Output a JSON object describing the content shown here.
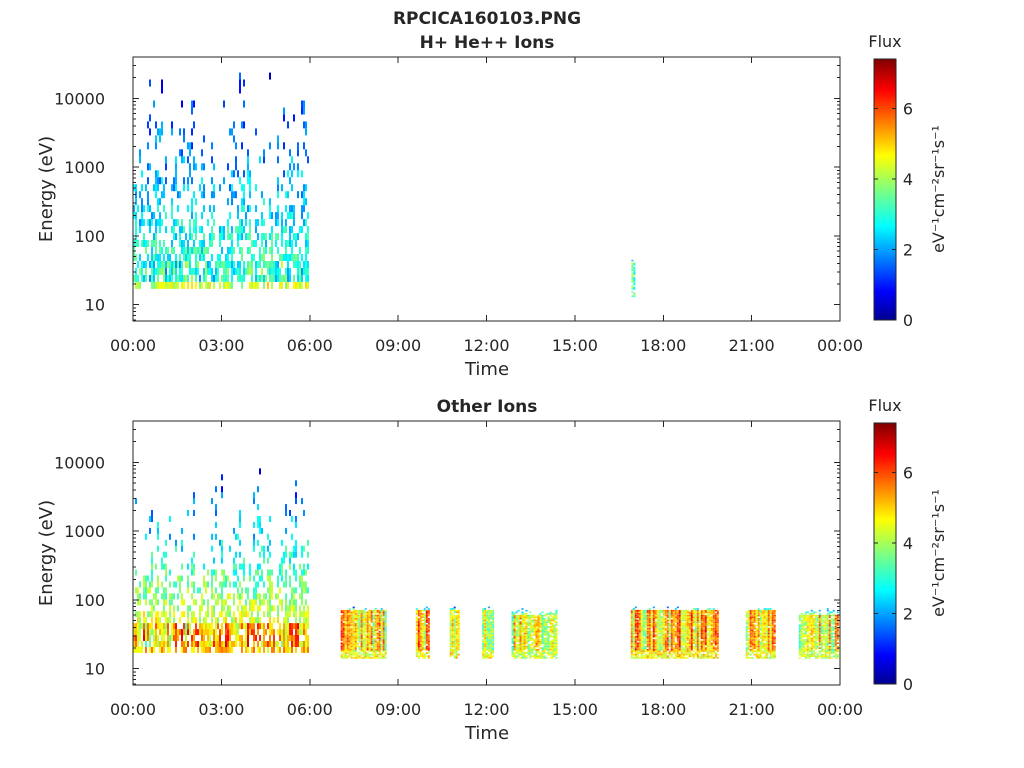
{
  "figure": {
    "title_line1": "RPCICA160103.PNG"
  },
  "chart_data": [
    {
      "type": "heatmap",
      "title": "H+ He++ Ions",
      "xlabel": "Time",
      "ylabel": "Energy (eV)",
      "y_scale": "log",
      "ylim": [
        5.8,
        40000
      ],
      "x_ticks": [
        "00:00",
        "03:00",
        "06:00",
        "09:00",
        "12:00",
        "15:00",
        "18:00",
        "21:00",
        "00:00"
      ],
      "x_range_hours": [
        0,
        24
      ],
      "y_ticks": [
        {
          "value": 10,
          "label": "10"
        },
        {
          "value": 100,
          "label": "100"
        },
        {
          "value": 1000,
          "label": "1000"
        },
        {
          "value": 10000,
          "label": "10000"
        }
      ],
      "colorbar": {
        "title": "Flux",
        "label": "eV⁻¹cm⁻²sr⁻¹s⁻¹",
        "range": [
          0,
          7.4
        ],
        "ticks": [
          {
            "value": 0,
            "label": "0"
          },
          {
            "value": 2,
            "label": "2"
          },
          {
            "value": 4,
            "label": "4"
          },
          {
            "value": 6,
            "label": "6"
          }
        ]
      },
      "blocks": [
        {
          "t_start": 0.0,
          "t_end": 5.95,
          "e_low": 17,
          "e_high": 30000,
          "core_low": 20,
          "core_high": 45,
          "core_level": 3.8,
          "density": 0.75,
          "lowband_level": 4.3
        },
        {
          "t_start": 16.92,
          "t_end": 17.0,
          "e_low": 13,
          "e_high": 60,
          "core_low": 15,
          "core_high": 40,
          "core_level": 4.5,
          "density": 0.9
        }
      ]
    },
    {
      "type": "heatmap",
      "title": "Other Ions",
      "xlabel": "Time",
      "ylabel": "Energy (eV)",
      "y_scale": "log",
      "ylim": [
        5.8,
        40000
      ],
      "x_ticks": [
        "00:00",
        "03:00",
        "06:00",
        "09:00",
        "12:00",
        "15:00",
        "18:00",
        "21:00",
        "00:00"
      ],
      "x_range_hours": [
        0,
        24
      ],
      "y_ticks": [
        {
          "value": 10,
          "label": "10"
        },
        {
          "value": 100,
          "label": "100"
        },
        {
          "value": 1000,
          "label": "1000"
        },
        {
          "value": 10000,
          "label": "10000"
        }
      ],
      "colorbar": {
        "title": "Flux",
        "label": "eV⁻¹cm⁻²sr⁻¹s⁻¹",
        "range": [
          0,
          7.4
        ],
        "ticks": [
          {
            "value": 0,
            "label": "0"
          },
          {
            "value": 2,
            "label": "2"
          },
          {
            "value": 4,
            "label": "4"
          },
          {
            "value": 6,
            "label": "6"
          }
        ]
      },
      "blocks": [
        {
          "t_start": 0.0,
          "t_end": 5.95,
          "e_low": 17,
          "e_high": 10000,
          "core_low": 20,
          "core_high": 45,
          "core_level": 6.3,
          "density": 0.8,
          "lowband_level": 5.0
        },
        {
          "t_start": 7.05,
          "t_end": 8.55,
          "e_low": 14,
          "e_high": 80,
          "core_low": 18,
          "core_high": 70,
          "core_level": 6.0,
          "density": 0.95
        },
        {
          "t_start": 9.6,
          "t_end": 10.05,
          "e_low": 14,
          "e_high": 80,
          "core_low": 18,
          "core_high": 70,
          "core_level": 6.2,
          "density": 0.95
        },
        {
          "t_start": 10.75,
          "t_end": 11.05,
          "e_low": 14,
          "e_high": 80,
          "core_low": 18,
          "core_high": 70,
          "core_level": 6.2,
          "density": 0.95
        },
        {
          "t_start": 11.85,
          "t_end": 12.2,
          "e_low": 14,
          "e_high": 80,
          "core_low": 18,
          "core_high": 70,
          "core_level": 6.0,
          "density": 0.95
        },
        {
          "t_start": 12.85,
          "t_end": 14.35,
          "e_low": 14,
          "e_high": 80,
          "core_low": 18,
          "core_high": 60,
          "core_level": 5.5,
          "density": 0.9
        },
        {
          "t_start": 16.9,
          "t_end": 19.85,
          "e_low": 14,
          "e_high": 80,
          "core_low": 18,
          "core_high": 70,
          "core_level": 6.2,
          "density": 0.95
        },
        {
          "t_start": 20.8,
          "t_end": 21.8,
          "e_low": 14,
          "e_high": 80,
          "core_low": 18,
          "core_high": 70,
          "core_level": 6.0,
          "density": 0.95
        },
        {
          "t_start": 22.6,
          "t_end": 23.95,
          "e_low": 14,
          "e_high": 80,
          "core_low": 18,
          "core_high": 60,
          "core_level": 5.6,
          "density": 0.9
        }
      ]
    }
  ]
}
